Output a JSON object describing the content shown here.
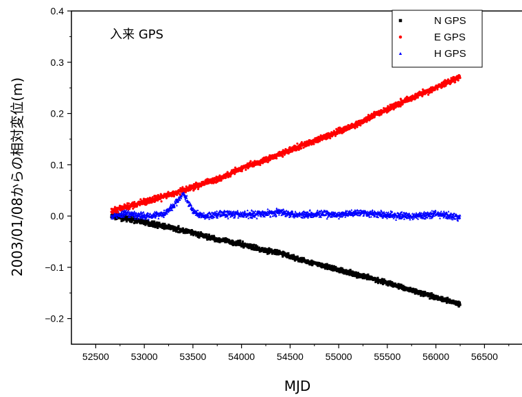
{
  "chart_data": {
    "type": "scatter",
    "annotation": "入来 GPS",
    "xlabel": "MJD",
    "ylabel": "2003/01/08からの相対変位(m)",
    "xlim": [
      52250,
      56900
    ],
    "ylim": [
      -0.25,
      0.4
    ],
    "xticks": [
      52500,
      53000,
      53500,
      54000,
      54500,
      55000,
      55500,
      56000,
      56500
    ],
    "xtick_labels": [
      "52500",
      "53000",
      "53500",
      "54000",
      "54500",
      "55000",
      "55500",
      "56000",
      "56500"
    ],
    "yticks": [
      -0.2,
      -0.1,
      0.0,
      0.1,
      0.2,
      0.3,
      0.4
    ],
    "ytick_labels": [
      "−0.2",
      "−0.1",
      "0.0",
      "0.1",
      "0.2",
      "0.3",
      "0.4"
    ],
    "legend_position": "top-right",
    "series": [
      {
        "name": "N GPS",
        "color": "#000000",
        "marker": "square",
        "points": [
          [
            52660,
            0.0
          ],
          [
            52800,
            -0.004
          ],
          [
            53000,
            -0.012
          ],
          [
            53200,
            -0.02
          ],
          [
            53400,
            -0.028
          ],
          [
            53500,
            -0.033
          ],
          [
            53700,
            -0.043
          ],
          [
            54000,
            -0.055
          ],
          [
            54200,
            -0.065
          ],
          [
            54400,
            -0.072
          ],
          [
            54600,
            -0.085
          ],
          [
            54800,
            -0.095
          ],
          [
            55000,
            -0.105
          ],
          [
            55200,
            -0.115
          ],
          [
            55500,
            -0.13
          ],
          [
            55700,
            -0.142
          ],
          [
            56000,
            -0.158
          ],
          [
            56250,
            -0.172
          ]
        ]
      },
      {
        "name": "E GPS",
        "color": "#ff0000",
        "marker": "circle",
        "points": [
          [
            52660,
            0.01
          ],
          [
            52800,
            0.017
          ],
          [
            53000,
            0.027
          ],
          [
            53200,
            0.038
          ],
          [
            53400,
            0.05
          ],
          [
            53600,
            0.063
          ],
          [
            53800,
            0.076
          ],
          [
            54000,
            0.093
          ],
          [
            54200,
            0.107
          ],
          [
            54400,
            0.121
          ],
          [
            54600,
            0.136
          ],
          [
            54800,
            0.15
          ],
          [
            55000,
            0.165
          ],
          [
            55200,
            0.18
          ],
          [
            55400,
            0.2
          ],
          [
            55600,
            0.218
          ],
          [
            55800,
            0.235
          ],
          [
            56000,
            0.25
          ],
          [
            56250,
            0.272
          ]
        ]
      },
      {
        "name": "H GPS",
        "color": "#0000ff",
        "marker": "triangle",
        "points": [
          [
            52660,
            0.0
          ],
          [
            52800,
            0.005
          ],
          [
            53000,
            0.0
          ],
          [
            53200,
            0.005
          ],
          [
            53300,
            0.02
          ],
          [
            53400,
            0.045
          ],
          [
            53500,
            0.01
          ],
          [
            53600,
            0.0
          ],
          [
            53800,
            0.005
          ],
          [
            54000,
            0.003
          ],
          [
            54200,
            0.005
          ],
          [
            54400,
            0.008
          ],
          [
            54600,
            0.003
          ],
          [
            54800,
            0.005
          ],
          [
            55000,
            0.002
          ],
          [
            55200,
            0.008
          ],
          [
            55500,
            0.002
          ],
          [
            55800,
            0.0
          ],
          [
            56000,
            0.005
          ],
          [
            56250,
            -0.003
          ]
        ]
      }
    ]
  }
}
